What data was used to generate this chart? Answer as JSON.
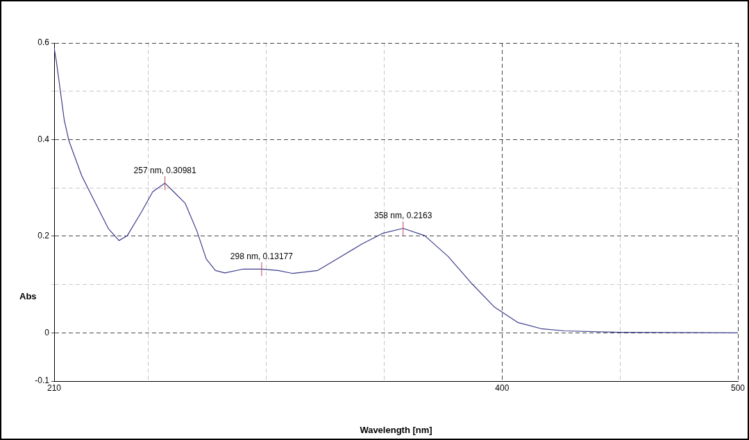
{
  "chart_data": {
    "type": "line",
    "xlabel": "Wavelength [nm]",
    "ylabel": "Abs",
    "x": [
      210,
      211,
      214.3,
      216.3,
      221.7,
      228.1,
      233.1,
      237.5,
      241,
      246.9,
      251.8,
      257,
      260.7,
      265.6,
      270.6,
      274.5,
      278.4,
      282.4,
      290.3,
      298,
      305,
      311,
      316.9,
      321.8,
      330.7,
      340.6,
      349.4,
      358,
      367.2,
      377.1,
      386.9,
      396.8,
      406.6,
      416.5,
      426.4,
      450,
      500
    ],
    "series": [
      {
        "color": "#3c3c8c",
        "values": [
          0.59,
          0.56,
          0.44,
          0.397,
          0.325,
          0.263,
          0.215,
          0.191,
          0.201,
          0.249,
          0.292,
          0.30981,
          0.292,
          0.268,
          0.21,
          0.153,
          0.129,
          0.124,
          0.132,
          0.13177,
          0.129,
          0.123,
          0.126,
          0.129,
          0.155,
          0.184,
          0.206,
          0.2163,
          0.201,
          0.158,
          0.103,
          0.053,
          0.0215,
          0.0086,
          0.004,
          0.001,
          0
        ]
      }
    ],
    "xlim": [
      210,
      500
    ],
    "ylim": [
      -0.1,
      0.6
    ],
    "xticks": [
      210,
      {
        "value": 250,
        "label": null
      },
      {
        "value": 300,
        "label": null
      },
      {
        "value": 350,
        "label": null
      },
      400,
      {
        "value": 450,
        "label": null
      },
      500
    ],
    "yticks": [
      -0.1,
      0,
      {
        "value": 0.1,
        "label": null
      },
      0.2,
      {
        "value": 0.3,
        "label": null
      },
      0.4,
      {
        "value": 0.5,
        "label": null
      },
      0.6
    ],
    "grid": true,
    "legend": false,
    "marker": "none",
    "line_style": "solid",
    "annotations": [
      {
        "text": "257 nm, 0.30981",
        "x": 257,
        "y": 0.30981
      },
      {
        "text": "298 nm, 0.13177",
        "x": 298,
        "y": 0.13177
      },
      {
        "text": "358 nm, 0.2163",
        "x": 358,
        "y": 0.2163
      }
    ]
  }
}
